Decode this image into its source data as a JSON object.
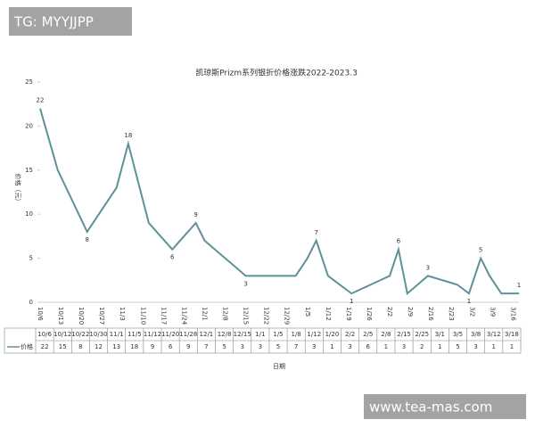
{
  "chart_data": {
    "type": "line",
    "title": "凯琼斯Prizm系列银折价格涨跌2022-2023.3",
    "y_label": "价格（元）",
    "x_label": "日期",
    "categories": [
      "10/6",
      "10/12",
      "10/22",
      "10/30",
      "11/1",
      "11/5",
      "11/12",
      "11/20",
      "11/28",
      "12/1",
      "12/8",
      "12/15",
      "1/1",
      "1/5",
      "1/8",
      "1/12",
      "1/20",
      "2/2",
      "2/5",
      "2/8",
      "2/15",
      "2/25",
      "3/1",
      "3/5",
      "3/8",
      "3/12",
      "3/18"
    ],
    "series": [
      {
        "name": "价格",
        "color": "#5f9199",
        "values": [
          22,
          15,
          8,
          12,
          13,
          18,
          9,
          6,
          9,
          7,
          5,
          3,
          3,
          5,
          7,
          3,
          1,
          3,
          6,
          1,
          3,
          2,
          1,
          5,
          3,
          1,
          1
        ],
        "value_labels": [
          "22",
          null,
          "8",
          null,
          null,
          "18",
          null,
          "6",
          "9",
          null,
          null,
          "3",
          null,
          null,
          "7",
          null,
          "1",
          null,
          "6",
          null,
          "3",
          null,
          "1",
          "5",
          null,
          null,
          "1"
        ]
      }
    ],
    "ylim": [
      0,
      25
    ],
    "yticks": [
      0,
      5,
      10,
      15,
      20,
      25
    ],
    "xticks": [
      "10/6",
      "10/13",
      "10/20",
      "10/27",
      "11/3",
      "11/10",
      "11/17",
      "11/24",
      "12/1",
      "12/8",
      "12/15",
      "12/22",
      "12/29",
      "1/5",
      "1/12",
      "1/19",
      "1/26",
      "2/2",
      "2/9",
      "2/16",
      "2/23",
      "3/2",
      "3/9",
      "3/16"
    ],
    "grid": false
  },
  "watermarks": [
    "TG: MYYJJPP",
    "www.tea-mas.com"
  ]
}
